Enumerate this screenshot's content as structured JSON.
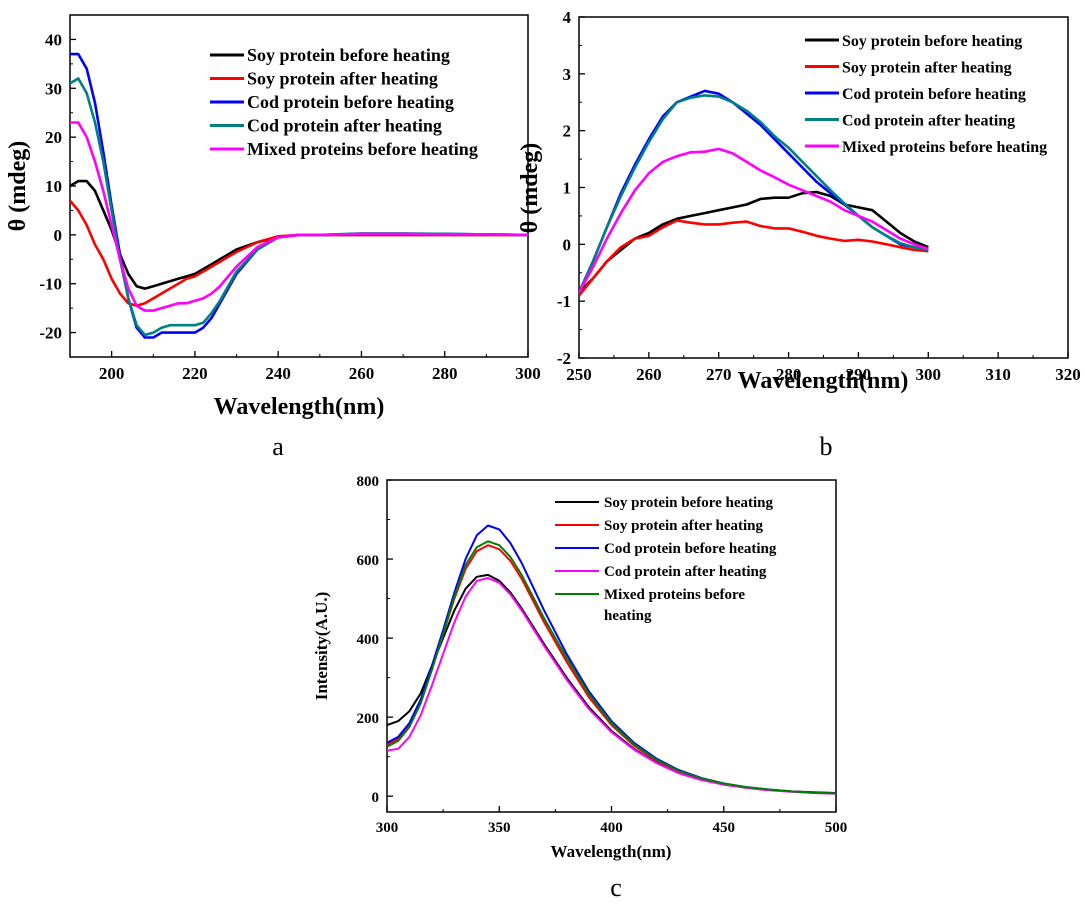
{
  "chart_data": [
    {
      "panel": "a",
      "type": "line",
      "xlabel": "Wavelength(nm)",
      "ylabel": "θ (mdeg)",
      "xlim": [
        190,
        300
      ],
      "ylim": [
        -25,
        45
      ],
      "xticks": [
        200,
        220,
        240,
        260,
        280,
        300
      ],
      "yticks": [
        -20,
        -10,
        0,
        10,
        20,
        30,
        40
      ],
      "legend_position": "top-right",
      "grid": false,
      "series": [
        {
          "name": "Soy protein before heating",
          "color": "#000000",
          "x": [
            190,
            192,
            194,
            196,
            198,
            200,
            202,
            204,
            206,
            208,
            210,
            212,
            214,
            216,
            218,
            220,
            222,
            224,
            226,
            228,
            230,
            235,
            240,
            245,
            250,
            260,
            270,
            280,
            290,
            300
          ],
          "y": [
            10,
            11,
            11,
            9,
            5,
            1,
            -4,
            -8,
            -10.5,
            -11,
            -10.5,
            -10,
            -9.5,
            -9,
            -8.5,
            -8,
            -7,
            -6,
            -5,
            -4,
            -3,
            -1.5,
            -0.5,
            0,
            0,
            0,
            0,
            0,
            0,
            0
          ]
        },
        {
          "name": "Soy protein after heating",
          "color": "#ff0000",
          "x": [
            190,
            192,
            194,
            196,
            198,
            200,
            202,
            204,
            206,
            208,
            210,
            212,
            214,
            216,
            218,
            220,
            222,
            224,
            226,
            228,
            230,
            235,
            240,
            245,
            250,
            260,
            270,
            280,
            290,
            300
          ],
          "y": [
            7,
            5,
            2,
            -2,
            -5,
            -9,
            -12,
            -14,
            -14.5,
            -14,
            -13,
            -12,
            -11,
            -10,
            -9,
            -8.5,
            -7.5,
            -6.5,
            -5.5,
            -4.5,
            -3.5,
            -1.5,
            -0.3,
            0,
            0,
            0,
            0,
            0,
            0,
            0
          ]
        },
        {
          "name": "Cod protein before heating",
          "color": "#0000ff",
          "x": [
            190,
            192,
            194,
            196,
            198,
            200,
            202,
            204,
            206,
            208,
            210,
            212,
            214,
            216,
            218,
            220,
            222,
            224,
            226,
            228,
            230,
            235,
            240,
            245,
            250,
            260,
            270,
            280,
            290,
            300
          ],
          "y": [
            37,
            37,
            34,
            27,
            17,
            6,
            -4,
            -13,
            -19,
            -21,
            -21,
            -20,
            -20,
            -20,
            -20,
            -20,
            -19,
            -17,
            -14,
            -11,
            -8,
            -3,
            -0.5,
            0,
            0,
            0.2,
            0.2,
            0.2,
            0.1,
            0
          ]
        },
        {
          "name": "Cod protein after heating",
          "color": "#008080",
          "x": [
            190,
            192,
            194,
            196,
            198,
            200,
            202,
            204,
            206,
            208,
            210,
            212,
            214,
            216,
            218,
            220,
            222,
            224,
            226,
            228,
            230,
            235,
            240,
            245,
            250,
            260,
            270,
            280,
            290,
            300
          ],
          "y": [
            31,
            32,
            29,
            23,
            15,
            5,
            -5,
            -13,
            -18.5,
            -20.5,
            -20,
            -19,
            -18.5,
            -18.5,
            -18.5,
            -18.5,
            -18,
            -16,
            -13.5,
            -10.5,
            -7.5,
            -3,
            -0.5,
            0,
            0,
            0.3,
            0.3,
            0.2,
            0.1,
            0
          ]
        },
        {
          "name": "Mixed proteins before heating",
          "color": "#ff00ff",
          "x": [
            190,
            192,
            194,
            196,
            198,
            200,
            202,
            204,
            206,
            208,
            210,
            212,
            214,
            216,
            218,
            220,
            222,
            224,
            226,
            228,
            230,
            235,
            240,
            245,
            250,
            260,
            270,
            280,
            290,
            300
          ],
          "y": [
            23,
            23,
            20,
            15,
            9,
            2,
            -5,
            -11,
            -14.5,
            -15.5,
            -15.5,
            -15,
            -14.5,
            -14,
            -14,
            -13.5,
            -13,
            -12,
            -10.5,
            -8.5,
            -6.5,
            -2.5,
            -0.5,
            0,
            0,
            0.2,
            0.2,
            0.1,
            0.1,
            0
          ]
        }
      ]
    },
    {
      "panel": "b",
      "type": "line",
      "xlabel": "Wavelength(nm)",
      "ylabel": "θ (mdeg)",
      "xlim": [
        250,
        320
      ],
      "ylim": [
        -2,
        4
      ],
      "xticks": [
        250,
        260,
        270,
        280,
        290,
        300,
        310,
        320
      ],
      "yticks": [
        -2,
        -1,
        0,
        1,
        2,
        3,
        4
      ],
      "legend_position": "top-right",
      "grid": false,
      "series": [
        {
          "name": "Soy protein before heating",
          "color": "#000000",
          "x": [
            250,
            252,
            254,
            256,
            258,
            260,
            262,
            264,
            266,
            268,
            270,
            272,
            274,
            276,
            278,
            280,
            282,
            284,
            286,
            288,
            290,
            292,
            294,
            296,
            298,
            300
          ],
          "y": [
            -0.85,
            -0.6,
            -0.3,
            -0.1,
            0.1,
            0.2,
            0.35,
            0.45,
            0.5,
            0.55,
            0.6,
            0.65,
            0.7,
            0.8,
            0.82,
            0.82,
            0.9,
            0.92,
            0.85,
            0.7,
            0.65,
            0.6,
            0.4,
            0.2,
            0.05,
            -0.05
          ]
        },
        {
          "name": "Soy protein after heating",
          "color": "#ff0000",
          "x": [
            250,
            252,
            254,
            256,
            258,
            260,
            262,
            264,
            266,
            268,
            270,
            272,
            274,
            276,
            278,
            280,
            282,
            284,
            286,
            288,
            290,
            292,
            294,
            296,
            298,
            300
          ],
          "y": [
            -0.9,
            -0.6,
            -0.3,
            -0.05,
            0.1,
            0.15,
            0.3,
            0.42,
            0.38,
            0.35,
            0.35,
            0.38,
            0.4,
            0.32,
            0.28,
            0.28,
            0.22,
            0.15,
            0.1,
            0.06,
            0.08,
            0.05,
            0.0,
            -0.05,
            -0.1,
            -0.12
          ]
        },
        {
          "name": "Cod protein before heating",
          "color": "#0000ff",
          "x": [
            250,
            252,
            254,
            256,
            258,
            260,
            262,
            264,
            266,
            268,
            270,
            272,
            274,
            276,
            278,
            280,
            282,
            284,
            286,
            288,
            290,
            292,
            294,
            296,
            298,
            300
          ],
          "y": [
            -0.85,
            -0.3,
            0.3,
            0.9,
            1.4,
            1.85,
            2.25,
            2.5,
            2.6,
            2.7,
            2.65,
            2.5,
            2.3,
            2.1,
            1.85,
            1.6,
            1.35,
            1.1,
            0.9,
            0.7,
            0.5,
            0.3,
            0.15,
            0.0,
            -0.05,
            -0.1
          ]
        },
        {
          "name": "Cod protein after heating",
          "color": "#008080",
          "x": [
            250,
            252,
            254,
            256,
            258,
            260,
            262,
            264,
            266,
            268,
            270,
            272,
            274,
            276,
            278,
            280,
            282,
            284,
            286,
            288,
            290,
            292,
            294,
            296,
            298,
            300
          ],
          "y": [
            -0.85,
            -0.3,
            0.3,
            0.85,
            1.35,
            1.8,
            2.2,
            2.5,
            2.58,
            2.62,
            2.6,
            2.5,
            2.35,
            2.15,
            1.9,
            1.7,
            1.45,
            1.2,
            0.95,
            0.72,
            0.5,
            0.3,
            0.15,
            0.02,
            -0.05,
            -0.1
          ]
        },
        {
          "name": "Mixed proteins before heating",
          "color": "#ff00ff",
          "x": [
            250,
            252,
            254,
            256,
            258,
            260,
            262,
            264,
            266,
            268,
            270,
            272,
            274,
            276,
            278,
            280,
            282,
            284,
            286,
            288,
            290,
            292,
            294,
            296,
            298,
            300
          ],
          "y": [
            -0.85,
            -0.4,
            0.1,
            0.55,
            0.95,
            1.25,
            1.45,
            1.55,
            1.62,
            1.63,
            1.68,
            1.6,
            1.45,
            1.3,
            1.18,
            1.05,
            0.95,
            0.85,
            0.75,
            0.6,
            0.5,
            0.4,
            0.25,
            0.1,
            0.0,
            -0.08
          ]
        }
      ]
    },
    {
      "panel": "c",
      "type": "line",
      "xlabel": "Wavelength(nm)",
      "ylabel": "Intensity(A.U.)",
      "xlim": [
        300,
        500
      ],
      "ylim": [
        -40,
        800
      ],
      "xticks": [
        300,
        350,
        400,
        450,
        500
      ],
      "yticks": [
        0,
        200,
        400,
        600,
        800
      ],
      "legend_position": "top-right",
      "grid": false,
      "series": [
        {
          "name": "Soy protein before heating",
          "color": "#000000",
          "x": [
            300,
            305,
            310,
            315,
            320,
            325,
            330,
            335,
            340,
            345,
            350,
            355,
            360,
            365,
            370,
            380,
            390,
            400,
            410,
            420,
            430,
            440,
            450,
            460,
            470,
            480,
            490,
            500
          ],
          "y": [
            180,
            190,
            215,
            260,
            330,
            400,
            470,
            525,
            555,
            560,
            545,
            515,
            475,
            430,
            385,
            300,
            225,
            165,
            120,
            85,
            60,
            42,
            30,
            22,
            16,
            12,
            10,
            8
          ]
        },
        {
          "name": "Soy protein after heating",
          "color": "#ff0000",
          "x": [
            300,
            305,
            310,
            315,
            320,
            325,
            330,
            335,
            340,
            345,
            350,
            355,
            360,
            365,
            370,
            380,
            390,
            400,
            410,
            420,
            430,
            440,
            450,
            460,
            470,
            480,
            490,
            500
          ],
          "y": [
            130,
            145,
            180,
            240,
            320,
            410,
            500,
            575,
            620,
            635,
            625,
            595,
            550,
            495,
            440,
            340,
            250,
            180,
            128,
            90,
            63,
            44,
            31,
            22,
            16,
            12,
            9,
            7
          ]
        },
        {
          "name": "Cod protein before heating",
          "color": "#0000ff",
          "x": [
            300,
            305,
            310,
            315,
            320,
            325,
            330,
            335,
            340,
            345,
            350,
            355,
            360,
            365,
            370,
            380,
            390,
            400,
            410,
            420,
            430,
            440,
            450,
            460,
            470,
            480,
            490,
            500
          ],
          "y": [
            135,
            150,
            185,
            245,
            330,
            420,
            515,
            600,
            660,
            685,
            675,
            640,
            590,
            530,
            470,
            360,
            265,
            190,
            135,
            95,
            66,
            46,
            32,
            23,
            17,
            12,
            9,
            7
          ]
        },
        {
          "name": "Cod protein after heating",
          "color": "#ff00ff",
          "x": [
            300,
            305,
            310,
            315,
            320,
            325,
            330,
            335,
            340,
            345,
            350,
            355,
            360,
            365,
            370,
            380,
            390,
            400,
            410,
            420,
            430,
            440,
            450,
            460,
            470,
            480,
            490,
            500
          ],
          "y": [
            115,
            120,
            150,
            205,
            280,
            360,
            440,
            505,
            545,
            552,
            540,
            510,
            470,
            425,
            380,
            295,
            220,
            162,
            118,
            84,
            58,
            41,
            29,
            21,
            15,
            11,
            8,
            6
          ]
        },
        {
          "name": "Mixed proteins before heating",
          "color": "#008000",
          "x": [
            300,
            305,
            310,
            315,
            320,
            325,
            330,
            335,
            340,
            345,
            350,
            355,
            360,
            365,
            370,
            380,
            390,
            400,
            410,
            420,
            430,
            440,
            450,
            460,
            470,
            480,
            490,
            500
          ],
          "y": [
            125,
            140,
            175,
            235,
            320,
            410,
            505,
            585,
            630,
            645,
            635,
            605,
            560,
            505,
            450,
            350,
            258,
            185,
            131,
            92,
            64,
            45,
            32,
            23,
            17,
            12,
            9,
            7
          ]
        }
      ]
    }
  ],
  "legend_c_lines": [
    [
      "Soy protein before heating"
    ],
    [
      "Soy protein after heating"
    ],
    [
      "Cod protein before heating"
    ],
    [
      "Cod protein after heating"
    ],
    [
      "Mixed proteins before",
      "heating"
    ]
  ],
  "captions": {
    "a": "a",
    "b": "b",
    "c": "c"
  }
}
